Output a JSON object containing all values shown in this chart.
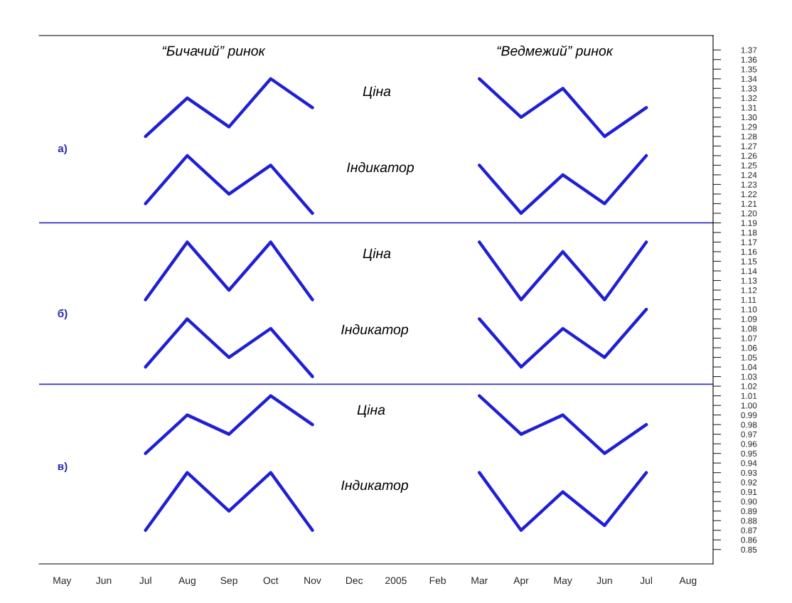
{
  "chart_data": {
    "type": "line",
    "categories": [
      "May",
      "Jun",
      "Jul",
      "Aug",
      "Sep",
      "Oct",
      "Nov",
      "Dec",
      "2005",
      "Feb",
      "Mar",
      "Apr",
      "May",
      "Jun",
      "Jul",
      "Aug"
    ],
    "series": [
      {
        "color": "#1f1fd6",
        "values": [
          null,
          null,
          1.28,
          1.32,
          1.29,
          1.34,
          1.31,
          null,
          null,
          null,
          null,
          null,
          null,
          null,
          null,
          null
        ]
      },
      {
        "color": "#1f1fd6",
        "values": [
          null,
          null,
          1.21,
          1.26,
          1.22,
          1.25,
          1.2,
          null,
          null,
          null,
          null,
          null,
          null,
          null,
          null,
          null
        ]
      },
      {
        "color": "#1f1fd6",
        "values": [
          null,
          null,
          null,
          null,
          null,
          null,
          null,
          null,
          null,
          null,
          1.34,
          1.3,
          1.33,
          1.28,
          1.31,
          null
        ]
      },
      {
        "color": "#1f1fd6",
        "values": [
          null,
          null,
          null,
          null,
          null,
          null,
          null,
          null,
          null,
          null,
          1.25,
          1.2,
          1.24,
          1.21,
          1.26,
          null
        ]
      },
      {
        "color": "#1f1fd6",
        "values": [
          null,
          null,
          1.11,
          1.17,
          1.12,
          1.17,
          1.11,
          null,
          null,
          null,
          null,
          null,
          null,
          null,
          null,
          null
        ]
      },
      {
        "color": "#1f1fd6",
        "values": [
          null,
          null,
          1.04,
          1.09,
          1.05,
          1.08,
          1.03,
          null,
          null,
          null,
          null,
          null,
          null,
          null,
          null,
          null
        ]
      },
      {
        "color": "#1f1fd6",
        "values": [
          null,
          null,
          null,
          null,
          null,
          null,
          null,
          null,
          null,
          null,
          1.17,
          1.11,
          1.16,
          1.11,
          1.17,
          null
        ]
      },
      {
        "color": "#1f1fd6",
        "values": [
          null,
          null,
          null,
          null,
          null,
          null,
          null,
          null,
          null,
          null,
          1.09,
          1.04,
          1.08,
          1.05,
          1.1,
          null
        ]
      },
      {
        "color": "#1f1fd6",
        "values": [
          null,
          null,
          0.95,
          0.99,
          0.97,
          1.01,
          0.98,
          null,
          null,
          null,
          null,
          null,
          null,
          null,
          null,
          null
        ]
      },
      {
        "color": "#1f1fd6",
        "values": [
          null,
          null,
          0.87,
          0.93,
          0.89,
          0.93,
          0.87,
          null,
          null,
          null,
          null,
          null,
          null,
          null,
          null,
          null
        ]
      },
      {
        "color": "#1f1fd6",
        "values": [
          null,
          null,
          null,
          null,
          null,
          null,
          null,
          null,
          null,
          null,
          1.01,
          0.97,
          0.99,
          0.95,
          0.98,
          null
        ]
      },
      {
        "color": "#1f1fd6",
        "values": [
          null,
          null,
          null,
          null,
          null,
          null,
          null,
          null,
          null,
          null,
          0.93,
          0.87,
          0.91,
          0.875,
          0.93,
          null
        ]
      }
    ],
    "ylim": [
      0.835,
      1.385
    ],
    "yticks": [
      {
        "value": 0.85,
        "label": "0.85"
      },
      {
        "value": 0.86,
        "label": "0.86"
      },
      {
        "value": 0.87,
        "label": "0.87"
      },
      {
        "value": 0.88,
        "label": "0.88"
      },
      {
        "value": 0.89,
        "label": "0.89"
      },
      {
        "value": 0.9,
        "label": "0.90"
      },
      {
        "value": 0.91,
        "label": "0.91"
      },
      {
        "value": 0.92,
        "label": "0.92"
      },
      {
        "value": 0.93,
        "label": "0.93"
      },
      {
        "value": 0.94,
        "label": "0.94"
      },
      {
        "value": 0.95,
        "label": "0.95"
      },
      {
        "value": 0.96,
        "label": "0.96"
      },
      {
        "value": 0.97,
        "label": "0.97"
      },
      {
        "value": 0.98,
        "label": "0.98"
      },
      {
        "value": 0.99,
        "label": "0.99"
      },
      {
        "value": 1.0,
        "label": "1.00"
      },
      {
        "value": 1.01,
        "label": "1.01"
      },
      {
        "value": 1.02,
        "label": "1.02"
      },
      {
        "value": 1.03,
        "label": "1.03"
      },
      {
        "value": 1.04,
        "label": "1.04"
      },
      {
        "value": 1.05,
        "label": "1.05"
      },
      {
        "value": 1.06,
        "label": "1.06"
      },
      {
        "value": 1.07,
        "label": "1.07"
      },
      {
        "value": 1.08,
        "label": "1.08"
      },
      {
        "value": 1.09,
        "label": "1.09"
      },
      {
        "value": 1.1,
        "label": "1.10"
      },
      {
        "value": 1.11,
        "label": "1.11"
      },
      {
        "value": 1.12,
        "label": "1.12"
      },
      {
        "value": 1.13,
        "label": "1.13"
      },
      {
        "value": 1.14,
        "label": "1.14"
      },
      {
        "value": 1.15,
        "label": "1.15"
      },
      {
        "value": 1.16,
        "label": "1.16"
      },
      {
        "value": 1.17,
        "label": "1.17"
      },
      {
        "value": 1.18,
        "label": "1.18"
      },
      {
        "value": 1.19,
        "label": "1.19"
      },
      {
        "value": 1.2,
        "label": "1.20"
      },
      {
        "value": 1.21,
        "label": "1.21"
      },
      {
        "value": 1.22,
        "label": "1.22"
      },
      {
        "value": 1.23,
        "label": "1.23"
      },
      {
        "value": 1.24,
        "label": "1.24"
      },
      {
        "value": 1.25,
        "label": "1.25"
      },
      {
        "value": 1.26,
        "label": "1.26"
      },
      {
        "value": 1.27,
        "label": "1.27"
      },
      {
        "value": 1.28,
        "label": "1.28"
      },
      {
        "value": 1.29,
        "label": "1.29"
      },
      {
        "value": 1.3,
        "label": "1.30"
      },
      {
        "value": 1.31,
        "label": "1.31"
      },
      {
        "value": 1.32,
        "label": "1.32"
      },
      {
        "value": 1.33,
        "label": "1.33"
      },
      {
        "value": 1.34,
        "label": "1.34"
      },
      {
        "value": 1.35,
        "label": "1.35"
      },
      {
        "value": 1.36,
        "label": "1.36"
      },
      {
        "value": 1.37,
        "label": "1.37"
      }
    ],
    "ref_lines": [
      {
        "axis": "y",
        "value": 1.19,
        "color": "#3535c0"
      },
      {
        "axis": "y",
        "value": 1.022,
        "color": "#3535c0"
      }
    ],
    "annotations": [
      "“Бичачий” ринок",
      "“Ведмежий” ринок",
      "Ціна",
      "Індикатор",
      "Ціна",
      "Індикатор",
      "Ціна",
      "Індикатор",
      "а)",
      "б)",
      "в)"
    ],
    "grid": false,
    "legend": false,
    "marker": "none",
    "line_style": "solid"
  }
}
